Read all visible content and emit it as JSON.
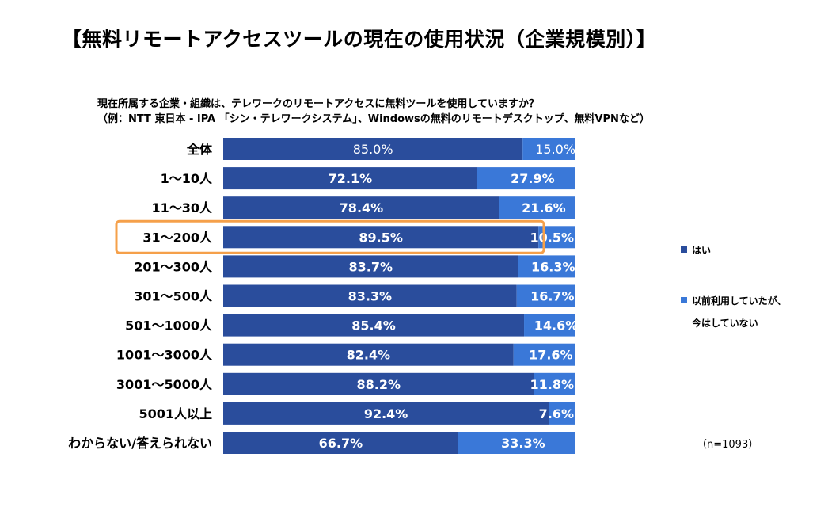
{
  "title": "【無料リモートアクセスツールの現在の使用状況（企業規模別）】",
  "question_line1": "現在所属する企業・組織は、テレワークのリモートアクセスに無料ツールを使用していますか？",
  "question_line2": "（例：NTT 東日本 - IPA 「シン・テレワークシステム」、Windowsの無料のリモートデスクトップ、無料VPNなど）",
  "note": "（n=1093）",
  "colors": {
    "yes": "#2a4d9c",
    "formerly": "#3a78d8",
    "highlight": "#f5a04a"
  },
  "chart_data": {
    "type": "bar",
    "orientation": "horizontal",
    "stacked": true,
    "percent_stacked": true,
    "categories": [
      "全体",
      "1～10人",
      "11～30人",
      "31～200人",
      "201～300人",
      "301～500人",
      "501～1000人",
      "1001～3000人",
      "3001～5000人",
      "5001人以上",
      "わからない/答えられない"
    ],
    "series": [
      {
        "name": "はい",
        "values": [
          85.0,
          72.1,
          78.4,
          89.5,
          83.7,
          83.3,
          85.4,
          82.4,
          88.2,
          92.4,
          66.7
        ],
        "labels": [
          "85.0%",
          "72.1%",
          "78.4%",
          "89.5%",
          "83.7%",
          "83.3%",
          "85.4%",
          "82.4%",
          "88.2%",
          "92.4%",
          "66.7%"
        ]
      },
      {
        "name": "以前利用していたが、今はしていない",
        "legend_lines": [
          "以前利用していたが、",
          "今はしていない"
        ],
        "values": [
          15.0,
          27.9,
          21.6,
          10.5,
          16.3,
          16.7,
          14.6,
          17.6,
          11.8,
          7.6,
          33.3
        ],
        "labels": [
          "15.0%",
          "27.9%",
          "21.6%",
          "10.5%",
          "16.3%",
          "16.7%",
          "14.6%",
          "17.6%",
          "11.8%",
          "7.6%",
          "33.3%"
        ]
      }
    ],
    "xlim": [
      0,
      100
    ],
    "highlighted_category": "31～200人",
    "legend_position": "right"
  }
}
